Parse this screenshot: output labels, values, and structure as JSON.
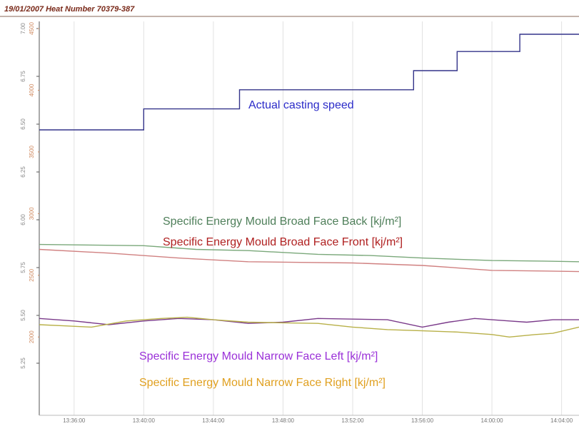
{
  "chart_data": {
    "type": "line",
    "title": "19/01/2007   Heat Number 70379-387",
    "xlim": [
      814,
      845
    ],
    "xticks": [
      {
        "value": 816,
        "label": "13:36:00"
      },
      {
        "value": 820,
        "label": "13:40:00"
      },
      {
        "value": 824,
        "label": "13:44:00"
      },
      {
        "value": 828,
        "label": "13:48:00"
      },
      {
        "value": 832,
        "label": "13:52:00"
      },
      {
        "value": 836,
        "label": "13:56:00"
      },
      {
        "value": 840,
        "label": "14:00:00"
      },
      {
        "value": 844,
        "label": "14:04:00"
      }
    ],
    "ylim": [
      5.0,
      7.0
    ],
    "yticks": [
      {
        "value": 7.0,
        "label": "7.00"
      },
      6.75,
      {
        "value": 6.5,
        "label": "6.50"
      },
      6.25,
      {
        "value": 6.0,
        "label": "6.00"
      },
      5.75,
      {
        "value": 5.5,
        "label": "5.50"
      },
      5.25
    ],
    "y2lim": [
      1400,
      4500
    ],
    "y2ticks": [
      4500,
      4000,
      3500,
      3000,
      2500,
      2000
    ],
    "grid": true,
    "series": [
      {
        "name": "Actual casting speed",
        "color": "#34348a",
        "label_color": "#2a2ac8",
        "axis": "y",
        "x": [
          814,
          820,
          820,
          825.5,
          825.5,
          835.5,
          835.5,
          838,
          838,
          841.6,
          841.6,
          845
        ],
        "values": [
          6.47,
          6.47,
          6.58,
          6.58,
          6.68,
          6.68,
          6.78,
          6.78,
          6.88,
          6.88,
          6.97,
          6.97
        ]
      },
      {
        "name": "Specific Energy Mould Broad Face Back [kj/m²]",
        "color": "#7aa87a",
        "label_color": "#4f7f5a",
        "axis": "y2",
        "x": [
          814,
          817,
          820,
          823,
          826,
          830,
          833,
          836,
          840,
          843,
          845
        ],
        "values": [
          2750,
          2745,
          2740,
          2710,
          2700,
          2670,
          2660,
          2640,
          2620,
          2615,
          2610
        ]
      },
      {
        "name": "Specific Energy Mould Broad Face Front [kj/m²]",
        "color": "#d08080",
        "label_color": "#b02020",
        "axis": "y2",
        "x": [
          814,
          818,
          822,
          826,
          829,
          832,
          836,
          838,
          840,
          843,
          845
        ],
        "values": [
          2710,
          2680,
          2640,
          2610,
          2605,
          2600,
          2580,
          2560,
          2540,
          2535,
          2530
        ]
      },
      {
        "name": "Specific Energy Mould Narrow Face Left [kj/m²]",
        "color": "#7a3a8a",
        "label_color": "#9a30d8",
        "axis": "y2",
        "x": [
          814,
          816,
          818,
          820,
          822,
          824,
          826,
          828,
          830,
          832,
          834,
          836,
          837.5,
          839,
          841,
          842,
          843.5,
          845
        ],
        "values": [
          2150,
          2130,
          2100,
          2130,
          2150,
          2140,
          2110,
          2120,
          2150,
          2145,
          2140,
          2080,
          2120,
          2150,
          2130,
          2120,
          2140,
          2140
        ]
      },
      {
        "name": "Specific Energy Mould Narrow Face Right [kj/m²]",
        "color": "#b8b048",
        "label_color": "#e0a020",
        "axis": "y2",
        "x": [
          814,
          815.5,
          817,
          819,
          821,
          822.5,
          824,
          826,
          828,
          830,
          832,
          834,
          836,
          838,
          840,
          841,
          842.5,
          843.5,
          845
        ],
        "values": [
          2100,
          2090,
          2080,
          2130,
          2150,
          2160,
          2140,
          2120,
          2115,
          2110,
          2080,
          2060,
          2050,
          2040,
          2020,
          2000,
          2020,
          2030,
          2080
        ]
      }
    ]
  }
}
